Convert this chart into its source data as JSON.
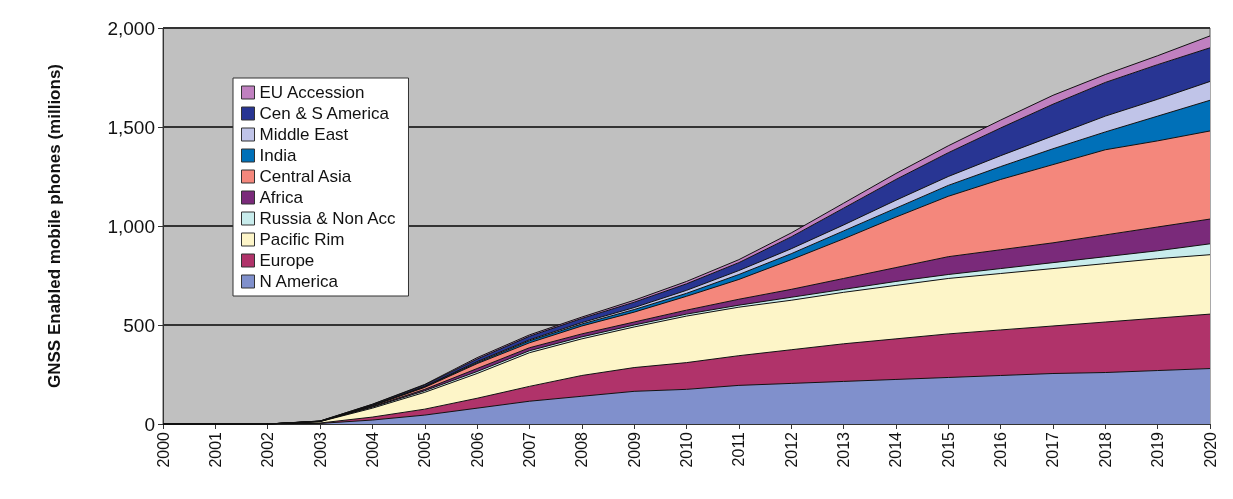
{
  "chart_data": {
    "type": "area",
    "stacked": true,
    "ylabel": "GNSS Enabled mobile phones (millions)",
    "categories": [
      "2000",
      "2001",
      "2002",
      "2003",
      "2004",
      "2005",
      "2006",
      "2007",
      "2008",
      "2009",
      "2010",
      "2011",
      "2012",
      "2013",
      "2014",
      "2015",
      "2016",
      "2017",
      "2018",
      "2019",
      "2020"
    ],
    "ylim": [
      0,
      2000
    ],
    "yticks": [
      0,
      500,
      {
        "value": 1000,
        "label": "1,000"
      },
      {
        "value": 1500,
        "label": "1,500"
      },
      {
        "value": 2000,
        "label": "2,000"
      }
    ],
    "grid": "y",
    "legend": "top left",
    "series": [
      {
        "name": "N America",
        "color": "#8090cc",
        "values": [
          0,
          0,
          0,
          3,
          20,
          45,
          80,
          115,
          140,
          165,
          175,
          195,
          205,
          215,
          225,
          235,
          245,
          255,
          260,
          270,
          280
        ]
      },
      {
        "name": "Europe",
        "color": "#b0336a",
        "values": [
          0,
          0,
          0,
          2,
          15,
          30,
          50,
          75,
          105,
          120,
          135,
          150,
          170,
          190,
          205,
          220,
          230,
          240,
          255,
          265,
          275
        ]
      },
      {
        "name": "Pacific Rim",
        "color": "#fdf5c8",
        "values": [
          0,
          0,
          0,
          7,
          45,
          85,
          125,
          170,
          185,
          205,
          235,
          245,
          250,
          260,
          270,
          280,
          285,
          290,
          295,
          300,
          300
        ]
      },
      {
        "name": "Russia & Non Acc",
        "color": "#c8ecec",
        "values": [
          0,
          0,
          0,
          1,
          5,
          8,
          10,
          10,
          10,
          10,
          10,
          10,
          15,
          15,
          20,
          20,
          25,
          30,
          35,
          40,
          55
        ]
      },
      {
        "name": "Africa",
        "color": "#7a2a7a",
        "values": [
          0,
          0,
          0,
          0,
          3,
          7,
          15,
          15,
          15,
          15,
          20,
          30,
          40,
          55,
          70,
          90,
          95,
          100,
          110,
          120,
          125
        ]
      },
      {
        "name": "Central Asia",
        "color": "#f4877c",
        "values": [
          0,
          0,
          0,
          1,
          4,
          10,
          25,
          25,
          40,
          50,
          70,
          100,
          150,
          200,
          255,
          305,
          355,
          395,
          430,
          435,
          445
        ]
      },
      {
        "name": "India",
        "color": "#0070b8",
        "values": [
          0,
          0,
          0,
          0,
          1,
          3,
          5,
          10,
          10,
          13,
          15,
          25,
          30,
          40,
          45,
          55,
          65,
          80,
          90,
          125,
          155
        ]
      },
      {
        "name": "Middle East",
        "color": "#c0c4e8",
        "values": [
          0,
          0,
          0,
          0,
          2,
          2,
          5,
          5,
          7,
          10,
          15,
          20,
          25,
          30,
          40,
          45,
          55,
          65,
          80,
          85,
          95
        ]
      },
      {
        "name": "Cen & S America",
        "color": "#283593",
        "values": [
          0,
          0,
          0,
          1,
          4,
          7,
          13,
          18,
          21,
          27,
          33,
          40,
          60,
          85,
          105,
          120,
          140,
          160,
          170,
          175,
          170
        ]
      },
      {
        "name": "EU Accession",
        "color": "#c080c0",
        "values": [
          0,
          0,
          0,
          0,
          1,
          3,
          7,
          7,
          7,
          10,
          12,
          15,
          20,
          25,
          30,
          35,
          40,
          45,
          40,
          45,
          60
        ]
      }
    ]
  }
}
